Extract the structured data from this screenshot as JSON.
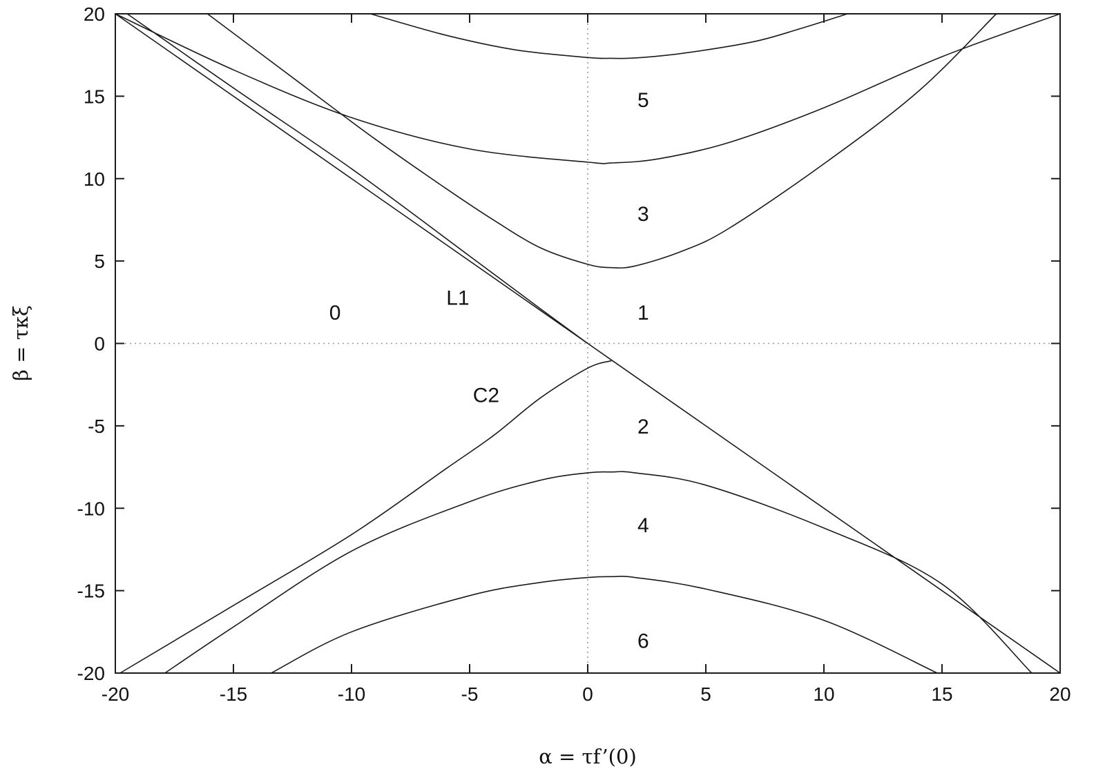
{
  "chart_data": {
    "type": "line",
    "xlabel": "α = τf’(0)",
    "ylabel": "β = τκξ",
    "xlim": [
      -20,
      20
    ],
    "ylim": [
      -20,
      20
    ],
    "x_ticks": [
      -20,
      -15,
      -10,
      -5,
      0,
      5,
      10,
      15,
      20
    ],
    "y_ticks": [
      -20,
      -15,
      -10,
      -5,
      0,
      5,
      10,
      15,
      20
    ],
    "zero_lines": {
      "x0": true,
      "y0": true,
      "style": "dotted"
    },
    "grid": false,
    "line_color": "#1a1a1a",
    "series": [
      {
        "points": [
          [
            -20,
            20
          ],
          [
            0,
            0
          ],
          [
            20,
            -20
          ]
        ]
      },
      {
        "points": [
          [
            -19.5,
            20
          ],
          [
            -15,
            15.5
          ],
          [
            -10,
            10.6
          ],
          [
            -5,
            5.3
          ],
          [
            -2,
            2.1
          ],
          [
            0,
            0
          ]
        ]
      },
      {
        "points": [
          [
            -16.1,
            20
          ],
          [
            -12,
            15.6
          ],
          [
            -9,
            12.4
          ],
          [
            -6,
            9.4
          ],
          [
            -4,
            7.5
          ],
          [
            -2,
            5.8
          ],
          [
            0,
            4.8
          ],
          [
            1,
            4.6
          ],
          [
            2,
            4.7
          ],
          [
            4,
            5.6
          ],
          [
            6,
            7.0
          ],
          [
            10,
            10.9
          ],
          [
            14,
            15.3
          ],
          [
            17.3,
            20
          ]
        ]
      },
      {
        "points": [
          [
            -9.2,
            20
          ],
          [
            -6,
            18.7
          ],
          [
            -3,
            17.8
          ],
          [
            0,
            17.35
          ],
          [
            1,
            17.3
          ],
          [
            2,
            17.32
          ],
          [
            4,
            17.6
          ],
          [
            7,
            18.3
          ],
          [
            9,
            19.1
          ],
          [
            11,
            20
          ]
        ]
      },
      {
        "points": [
          [
            -20,
            20
          ],
          [
            -15,
            16.6
          ],
          [
            -10,
            13.7
          ],
          [
            -5,
            11.8
          ],
          [
            0,
            11.0
          ],
          [
            1,
            10.95
          ],
          [
            3,
            11.2
          ],
          [
            6,
            12.2
          ],
          [
            10,
            14.3
          ],
          [
            15,
            17.4
          ],
          [
            20,
            20
          ]
        ]
      },
      {
        "points": [
          [
            -19.8,
            -20
          ],
          [
            -15,
            -15.9
          ],
          [
            -10,
            -11.6
          ],
          [
            -6,
            -7.6
          ],
          [
            -4,
            -5.6
          ],
          [
            -2,
            -3.3
          ],
          [
            0,
            -1.5
          ],
          [
            1,
            -1.05
          ]
        ]
      },
      {
        "points": [
          [
            -17.9,
            -20
          ],
          [
            -15,
            -17.2
          ],
          [
            -10,
            -12.6
          ],
          [
            -5,
            -9.6
          ],
          [
            -2,
            -8.3
          ],
          [
            0,
            -7.85
          ],
          [
            1,
            -7.8
          ],
          [
            2,
            -7.85
          ],
          [
            5,
            -8.6
          ],
          [
            10,
            -11.2
          ],
          [
            15,
            -14.6
          ],
          [
            18.8,
            -20
          ]
        ]
      },
      {
        "points": [
          [
            -13.4,
            -20
          ],
          [
            -10,
            -17.5
          ],
          [
            -5,
            -15.3
          ],
          [
            -2,
            -14.5
          ],
          [
            0,
            -14.2
          ],
          [
            1,
            -14.15
          ],
          [
            2,
            -14.2
          ],
          [
            5,
            -14.9
          ],
          [
            10,
            -16.8
          ],
          [
            14.8,
            -20
          ]
        ]
      }
    ],
    "annotations": [
      {
        "text": "0",
        "x": -10.7,
        "y": 1.9
      },
      {
        "text": "L1",
        "x": -5.5,
        "y": 2.8
      },
      {
        "text": "1",
        "x": 2.35,
        "y": 1.9
      },
      {
        "text": "3",
        "x": 2.35,
        "y": 7.9
      },
      {
        "text": "5",
        "x": 2.35,
        "y": 14.8
      },
      {
        "text": "C2",
        "x": -4.3,
        "y": -3.1
      },
      {
        "text": "2",
        "x": 2.35,
        "y": -5.0
      },
      {
        "text": "4",
        "x": 2.35,
        "y": -11.0
      },
      {
        "text": "6",
        "x": 2.35,
        "y": -18.0
      }
    ]
  }
}
